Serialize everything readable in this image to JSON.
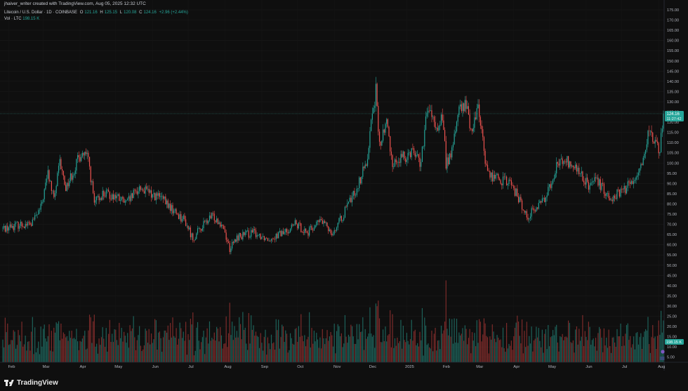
{
  "header": {
    "created_line": "jhaiver_writer created with TradingView.com, Aug 05, 2025 12:32 UTC",
    "symbol": "Litecoin / U.S. Dollar · 1D · COINBASE",
    "ohlc": {
      "o_label": "O",
      "o": "121.16",
      "h_label": "H",
      "h": "125.15",
      "l_label": "L",
      "l": "120.08",
      "c_label": "C",
      "c": "124.16",
      "change": "+2.96 (+2.44%)"
    },
    "vol_label": "Vol · LTC",
    "vol_value": "198.15 K"
  },
  "price_badge": {
    "price": "124.16",
    "countdown": "11:27:42",
    "color": "#26a69a"
  },
  "volume_badge": {
    "value": "198.15 K"
  },
  "footer": {
    "brand": "TradingView"
  },
  "colors": {
    "up": "#26a69a",
    "down": "#ef5350",
    "background": "#0f0f0f"
  },
  "chart_data": {
    "type": "candlestick",
    "title": "Litecoin / U.S. Dollar · 1D · COINBASE",
    "ylim": [
      2.5,
      175
    ],
    "y_ticks": [
      "5.00",
      "10.00",
      "15.00",
      "20.00",
      "25.00",
      "30.00",
      "35.00",
      "40.00",
      "45.00",
      "50.00",
      "55.00",
      "60.00",
      "65.00",
      "70.00",
      "75.00",
      "80.00",
      "85.00",
      "90.00",
      "95.00",
      "100.00",
      "105.00",
      "110.00",
      "115.00",
      "120.00",
      "125.00",
      "130.00",
      "135.00",
      "140.00",
      "145.00",
      "150.00",
      "155.00",
      "160.00",
      "165.00",
      "170.00",
      "175.00"
    ],
    "x_ticks": [
      "Feb",
      "Mar",
      "Apr",
      "May",
      "Jun",
      "Jul",
      "Aug",
      "Sep",
      "Oct",
      "Nov",
      "Dec",
      "2025",
      "Feb",
      "Mar",
      "Apr",
      "May",
      "Jun",
      "Jul",
      "Aug"
    ],
    "x_tick_dates": [
      "2024-02-01",
      "2024-03-01",
      "2024-04-01",
      "2024-05-01",
      "2024-06-01",
      "2024-07-01",
      "2024-08-01",
      "2024-09-01",
      "2024-10-01",
      "2024-11-01",
      "2024-12-01",
      "2025-01-01",
      "2025-02-01",
      "2025-03-01",
      "2025-04-01",
      "2025-05-01",
      "2025-06-01",
      "2025-07-01",
      "2025-08-01"
    ],
    "date_range": [
      "2024-01-27",
      "2025-08-05"
    ],
    "price_path": [
      [
        "2024-01-27",
        68
      ],
      [
        "2024-02-10",
        70
      ],
      [
        "2024-02-20",
        70
      ],
      [
        "2024-02-28",
        78
      ],
      [
        "2024-03-05",
        95
      ],
      [
        "2024-03-10",
        82
      ],
      [
        "2024-03-15",
        100
      ],
      [
        "2024-03-20",
        88
      ],
      [
        "2024-03-27",
        97
      ],
      [
        "2024-04-02",
        105
      ],
      [
        "2024-04-08",
        102
      ],
      [
        "2024-04-13",
        80
      ],
      [
        "2024-04-20",
        85
      ],
      [
        "2024-04-30",
        84
      ],
      [
        "2024-05-10",
        80
      ],
      [
        "2024-05-21",
        88
      ],
      [
        "2024-05-30",
        85
      ],
      [
        "2024-06-08",
        83
      ],
      [
        "2024-06-18",
        77
      ],
      [
        "2024-06-28",
        72
      ],
      [
        "2024-07-05",
        63
      ],
      [
        "2024-07-14",
        70
      ],
      [
        "2024-07-22",
        74
      ],
      [
        "2024-07-30",
        70
      ],
      [
        "2024-08-05",
        58
      ],
      [
        "2024-08-12",
        64
      ],
      [
        "2024-08-25",
        66
      ],
      [
        "2024-09-06",
        63
      ],
      [
        "2024-09-20",
        66
      ],
      [
        "2024-09-29",
        70
      ],
      [
        "2024-10-10",
        66
      ],
      [
        "2024-10-20",
        72
      ],
      [
        "2024-10-31",
        66
      ],
      [
        "2024-11-07",
        73
      ],
      [
        "2024-11-13",
        80
      ],
      [
        "2024-11-20",
        88
      ],
      [
        "2024-11-28",
        100
      ],
      [
        "2024-12-03",
        125
      ],
      [
        "2024-12-06",
        135
      ],
      [
        "2024-12-09",
        108
      ],
      [
        "2024-12-15",
        120
      ],
      [
        "2024-12-20",
        100
      ],
      [
        "2024-12-30",
        103
      ],
      [
        "2025-01-06",
        107
      ],
      [
        "2025-01-13",
        100
      ],
      [
        "2025-01-17",
        120
      ],
      [
        "2025-01-20",
        128
      ],
      [
        "2025-01-25",
        115
      ],
      [
        "2025-01-31",
        123
      ],
      [
        "2025-02-03",
        100
      ],
      [
        "2025-02-08",
        105
      ],
      [
        "2025-02-13",
        125
      ],
      [
        "2025-02-20",
        128
      ],
      [
        "2025-02-25",
        115
      ],
      [
        "2025-03-02",
        130
      ],
      [
        "2025-03-06",
        110
      ],
      [
        "2025-03-10",
        95
      ],
      [
        "2025-03-20",
        92
      ],
      [
        "2025-03-30",
        90
      ],
      [
        "2025-04-07",
        80
      ],
      [
        "2025-04-12",
        74
      ],
      [
        "2025-04-20",
        78
      ],
      [
        "2025-04-28",
        84
      ],
      [
        "2025-05-08",
        100
      ],
      [
        "2025-05-15",
        101
      ],
      [
        "2025-05-25",
        96
      ],
      [
        "2025-06-03",
        89
      ],
      [
        "2025-06-10",
        91
      ],
      [
        "2025-06-22",
        83
      ],
      [
        "2025-07-01",
        86
      ],
      [
        "2025-07-10",
        91
      ],
      [
        "2025-07-18",
        100
      ],
      [
        "2025-07-23",
        114
      ],
      [
        "2025-07-28",
        110
      ],
      [
        "2025-08-02",
        106
      ],
      [
        "2025-08-05",
        124.16
      ]
    ],
    "volume_unit": "K LTC"
  }
}
